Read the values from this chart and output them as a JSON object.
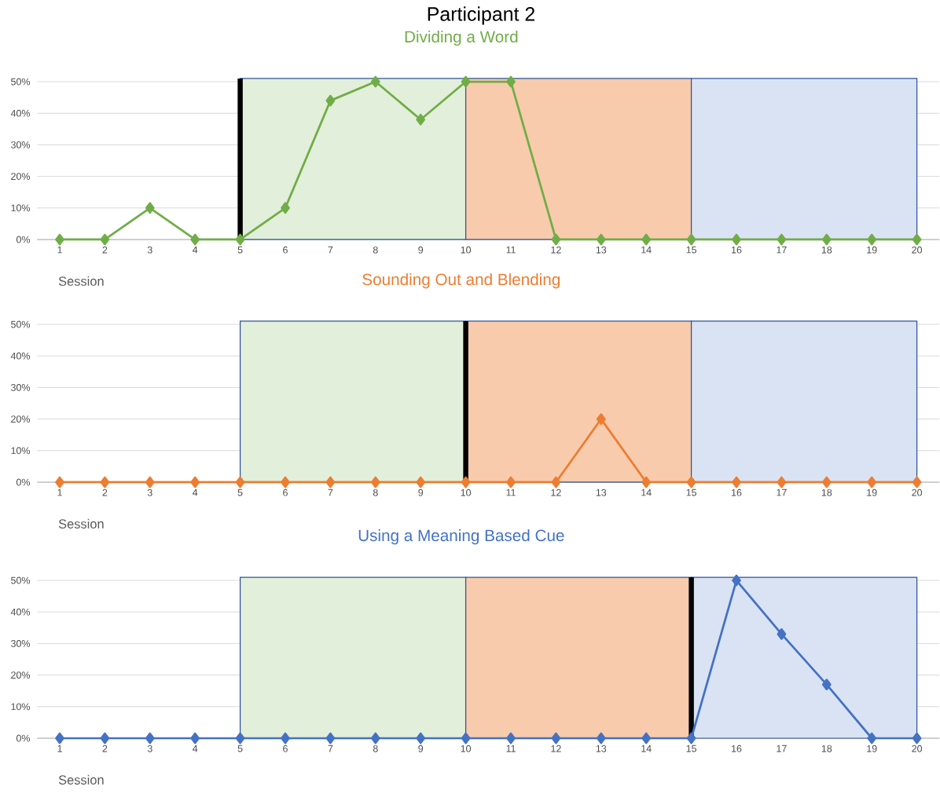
{
  "chart_data": [
    {
      "type": "line",
      "title": "Participant 2",
      "subtitle": "Dividing a Word",
      "xlabel": "Session",
      "x": [
        1,
        2,
        3,
        4,
        5,
        6,
        7,
        8,
        9,
        10,
        11,
        12,
        13,
        14,
        15,
        16,
        17,
        18,
        19,
        20
      ],
      "series": [
        {
          "color": "#70ad47",
          "values": [
            0,
            0,
            10,
            0,
            0,
            10,
            44,
            50,
            38,
            50,
            50,
            0,
            0,
            0,
            0,
            0,
            0,
            0,
            0,
            0
          ]
        }
      ],
      "xlim": [
        0.5,
        20.5
      ],
      "xticks": [
        1,
        2,
        3,
        4,
        5,
        6,
        7,
        8,
        9,
        10,
        11,
        12,
        13,
        14,
        15,
        16,
        17,
        18,
        19,
        20
      ],
      "ylim": [
        0,
        51
      ],
      "yticks": [
        {
          "value": 0,
          "label": "0%"
        },
        {
          "value": 10,
          "label": "10%"
        },
        {
          "value": 20,
          "label": "20%"
        },
        {
          "value": 30,
          "label": "30%"
        },
        {
          "value": 40,
          "label": "40%"
        },
        {
          "value": 50,
          "label": "50%"
        }
      ],
      "grid": "y",
      "marker": "diamond",
      "bands": [
        {
          "axis": "x",
          "from": 5,
          "to": 10,
          "color": "#e2efda"
        },
        {
          "axis": "x",
          "from": 10,
          "to": 15,
          "color": "#f8cbad"
        },
        {
          "axis": "x",
          "from": 15,
          "to": 20,
          "color": "#dae3f3"
        }
      ],
      "ref_lines": [
        {
          "axis": "x",
          "value": 5,
          "color": "#000000"
        }
      ]
    },
    {
      "type": "line",
      "subtitle": "Sounding Out and Blending",
      "xlabel": "Session",
      "x": [
        1,
        2,
        3,
        4,
        5,
        6,
        7,
        8,
        9,
        10,
        11,
        12,
        13,
        14,
        15,
        16,
        17,
        18,
        19,
        20
      ],
      "series": [
        {
          "color": "#ed7d31",
          "values": [
            0,
            0,
            0,
            0,
            0,
            0,
            0,
            0,
            0,
            0,
            0,
            0,
            20,
            0,
            0,
            0,
            0,
            0,
            0,
            0
          ]
        }
      ],
      "xlim": [
        0.5,
        20.5
      ],
      "xticks": [
        1,
        2,
        3,
        4,
        5,
        6,
        7,
        8,
        9,
        10,
        11,
        12,
        13,
        14,
        15,
        16,
        17,
        18,
        19,
        20
      ],
      "ylim": [
        0,
        51
      ],
      "yticks": [
        {
          "value": 0,
          "label": "0%"
        },
        {
          "value": 10,
          "label": "10%"
        },
        {
          "value": 20,
          "label": "20%"
        },
        {
          "value": 30,
          "label": "30%"
        },
        {
          "value": 40,
          "label": "40%"
        },
        {
          "value": 50,
          "label": "50%"
        }
      ],
      "grid": "y",
      "marker": "diamond",
      "bands": [
        {
          "axis": "x",
          "from": 5,
          "to": 10,
          "color": "#e2efda"
        },
        {
          "axis": "x",
          "from": 10,
          "to": 15,
          "color": "#f8cbad"
        },
        {
          "axis": "x",
          "from": 15,
          "to": 20,
          "color": "#dae3f3"
        }
      ],
      "ref_lines": [
        {
          "axis": "x",
          "value": 10,
          "color": "#000000"
        }
      ]
    },
    {
      "type": "line",
      "subtitle": "Using a Meaning Based Cue",
      "xlabel": "Session",
      "x": [
        1,
        2,
        3,
        4,
        5,
        6,
        7,
        8,
        9,
        10,
        11,
        12,
        13,
        14,
        15,
        16,
        17,
        18,
        19,
        20
      ],
      "series": [
        {
          "color": "#4472c4",
          "values": [
            0,
            0,
            0,
            0,
            0,
            0,
            0,
            0,
            0,
            0,
            0,
            0,
            0,
            0,
            0,
            50,
            33,
            17,
            0,
            0
          ]
        }
      ],
      "xlim": [
        0.5,
        20.5
      ],
      "xticks": [
        1,
        2,
        3,
        4,
        5,
        6,
        7,
        8,
        9,
        10,
        11,
        12,
        13,
        14,
        15,
        16,
        17,
        18,
        19,
        20
      ],
      "ylim": [
        0,
        51
      ],
      "yticks": [
        {
          "value": 0,
          "label": "0%"
        },
        {
          "value": 10,
          "label": "10%"
        },
        {
          "value": 20,
          "label": "20%"
        },
        {
          "value": 30,
          "label": "30%"
        },
        {
          "value": 40,
          "label": "40%"
        },
        {
          "value": 50,
          "label": "50%"
        }
      ],
      "grid": "y",
      "marker": "diamond",
      "bands": [
        {
          "axis": "x",
          "from": 5,
          "to": 10,
          "color": "#e2efda"
        },
        {
          "axis": "x",
          "from": 10,
          "to": 15,
          "color": "#f8cbad"
        },
        {
          "axis": "x",
          "from": 15,
          "to": 20,
          "color": "#dae3f3"
        }
      ],
      "ref_lines": [
        {
          "axis": "x",
          "value": 15,
          "color": "#000000"
        }
      ]
    }
  ]
}
